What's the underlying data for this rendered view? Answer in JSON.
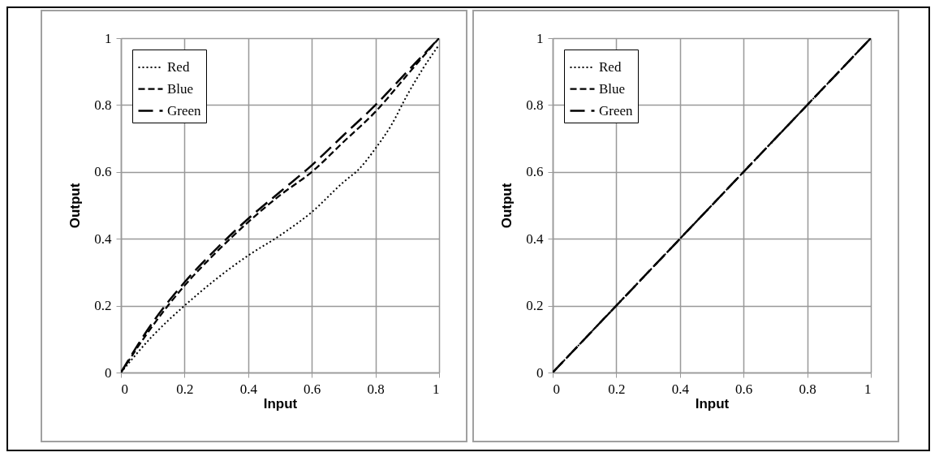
{
  "chart_data": [
    {
      "type": "line",
      "xlabel": "Input",
      "ylabel": "Output",
      "xlim": [
        0,
        1
      ],
      "ylim": [
        0,
        1
      ],
      "xticks": [
        0,
        0.2,
        0.4,
        0.6,
        0.8,
        1
      ],
      "yticks": [
        0,
        0.2,
        0.4,
        0.6,
        0.8,
        1
      ],
      "grid": true,
      "legend": "top left",
      "x": [
        0,
        0.1,
        0.2,
        0.3,
        0.4,
        0.5,
        0.6,
        0.7,
        0.8,
        0.9,
        1
      ],
      "series": [
        {
          "name": "Red",
          "color": "#000000",
          "line_style": "dotted",
          "x": [
            0,
            0.1,
            0.2,
            0.3,
            0.4,
            0.5,
            0.6,
            0.7,
            0.75,
            0.8,
            0.85,
            0.9,
            0.95,
            1
          ],
          "values": [
            0,
            0.11,
            0.2,
            0.28,
            0.35,
            0.41,
            0.48,
            0.57,
            0.61,
            0.67,
            0.74,
            0.83,
            0.91,
            0.98
          ]
        },
        {
          "name": "Blue",
          "color": "#000000",
          "line_style": "dashed",
          "values": [
            0,
            0.14,
            0.26,
            0.36,
            0.45,
            0.53,
            0.6,
            0.69,
            0.78,
            0.89,
            1
          ]
        },
        {
          "name": "Green",
          "color": "#000000",
          "line_style": "longdash",
          "values": [
            0,
            0.15,
            0.27,
            0.37,
            0.46,
            0.54,
            0.62,
            0.71,
            0.8,
            0.9,
            1
          ]
        }
      ]
    },
    {
      "type": "line",
      "xlabel": "Input",
      "ylabel": "Output",
      "xlim": [
        0,
        1
      ],
      "ylim": [
        0,
        1
      ],
      "xticks": [
        0,
        0.2,
        0.4,
        0.6,
        0.8,
        1
      ],
      "yticks": [
        0,
        0.2,
        0.4,
        0.6,
        0.8,
        1
      ],
      "grid": true,
      "legend": "top left",
      "x": [
        0,
        1
      ],
      "series": [
        {
          "name": "Red",
          "color": "#000000",
          "line_style": "dotted",
          "values": [
            0,
            1
          ]
        },
        {
          "name": "Blue",
          "color": "#000000",
          "line_style": "dashed",
          "values": [
            0,
            1
          ]
        },
        {
          "name": "Green",
          "color": "#000000",
          "line_style": "longdash",
          "values": [
            0,
            1
          ]
        }
      ]
    }
  ]
}
